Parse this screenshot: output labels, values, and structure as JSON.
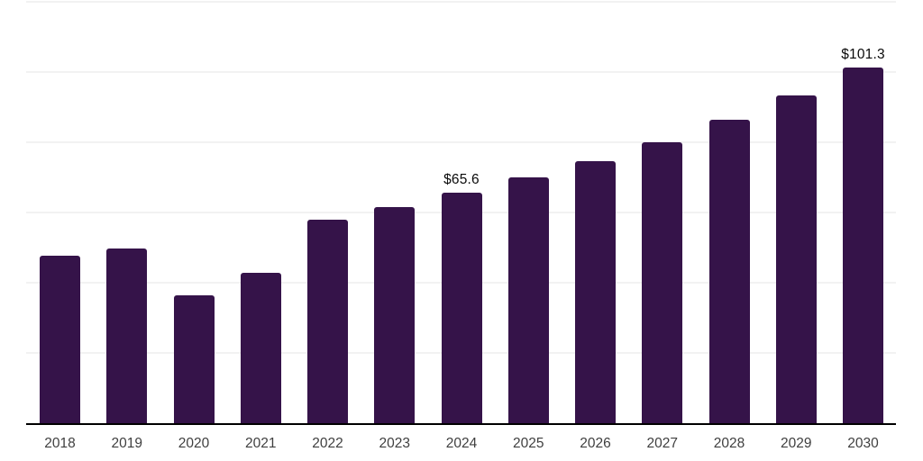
{
  "chart_data": {
    "type": "bar",
    "title": "",
    "xlabel": "",
    "ylabel": "",
    "categories": [
      "2018",
      "2019",
      "2020",
      "2021",
      "2022",
      "2023",
      "2024",
      "2025",
      "2026",
      "2027",
      "2028",
      "2029",
      "2030"
    ],
    "values": [
      47.7,
      49.8,
      36.5,
      42.9,
      57.9,
      61.5,
      65.6,
      69.9,
      74.5,
      80.1,
      86.3,
      93.4,
      101.3
    ],
    "data_labels": {
      "2024": "$65.6",
      "2030": "$101.3"
    },
    "ylim": [
      0,
      120
    ],
    "grid_step": 20,
    "grid": true,
    "legend": false,
    "y_axis_labels_visible": false,
    "colors": {
      "bar": "#351349",
      "gridline": "#f2f2f2",
      "axis_line": "#000000",
      "x_tick_label": "#3f3f3f",
      "data_label": "#0a0a0a",
      "background": "#ffffff"
    }
  }
}
